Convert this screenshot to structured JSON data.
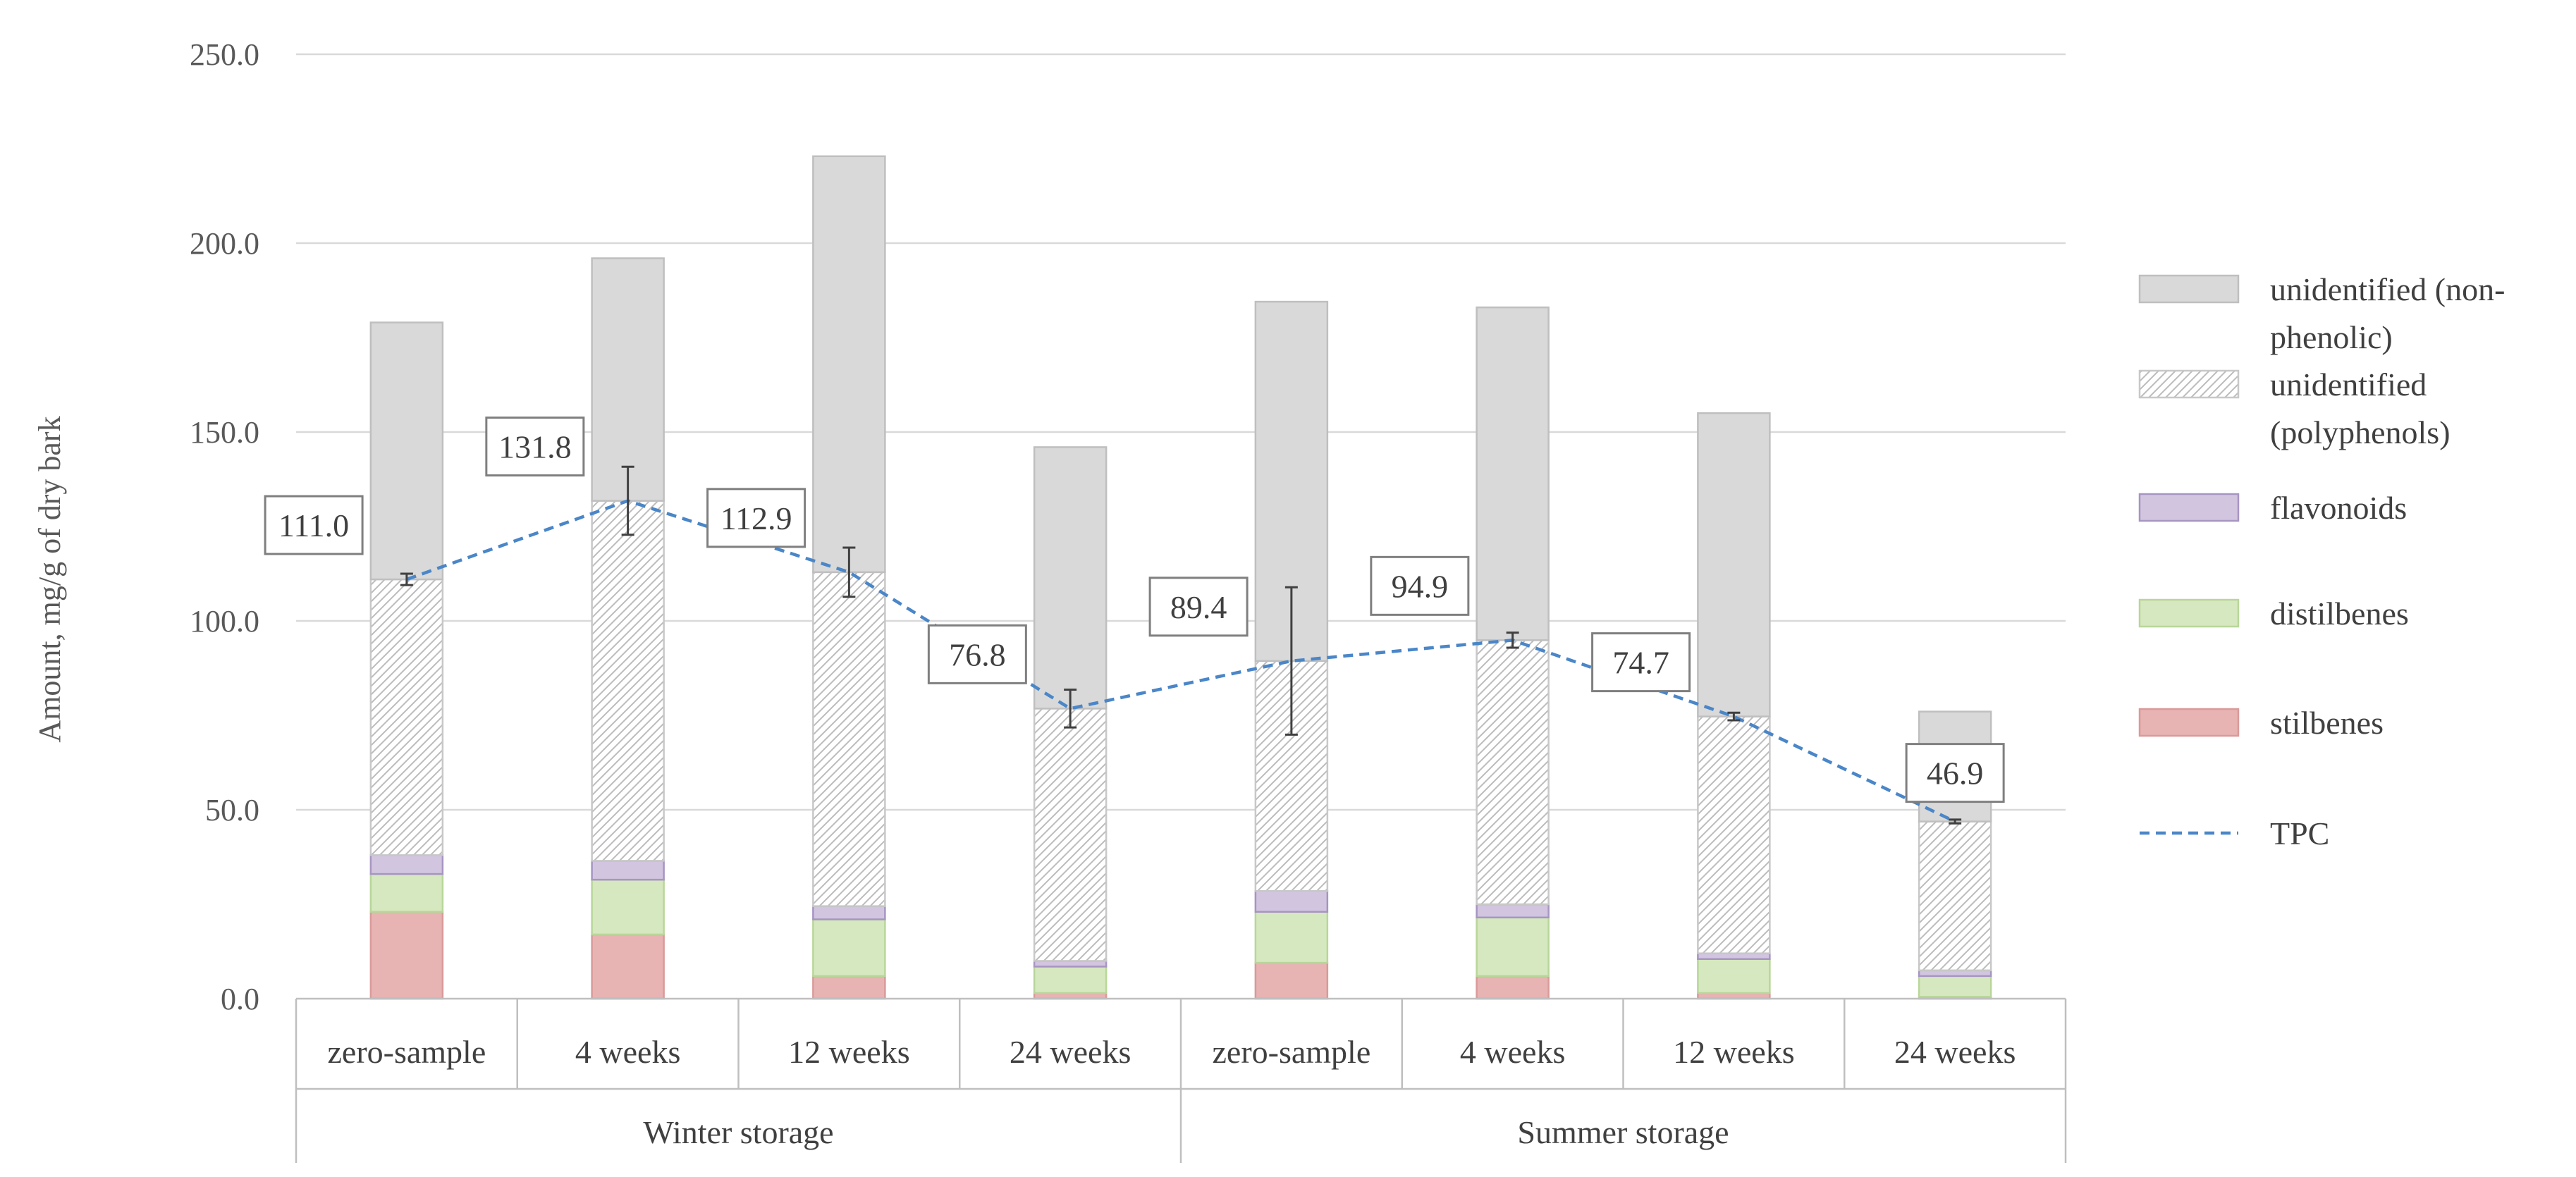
{
  "chart_data": {
    "type": "bar",
    "stacked": true,
    "ylabel": "Amount, mg/g of dry bark",
    "xlabel": "",
    "ylim": [
      0,
      250
    ],
    "yticks": [
      0,
      50,
      100,
      150,
      200,
      250
    ],
    "ytick_labels": [
      "0.0",
      "50.0",
      "100.0",
      "150.0",
      "200.0",
      "250.0"
    ],
    "grid": true,
    "legend_position": "right",
    "categories": [
      "zero-sample",
      "4 weeks",
      "12 weeks",
      "24 weeks",
      "zero-sample",
      "4 weeks",
      "12 weeks",
      "24 weeks"
    ],
    "groups": [
      {
        "label": "Winter storage",
        "span": [
          0,
          3
        ]
      },
      {
        "label": "Summer storage",
        "span": [
          4,
          7
        ]
      }
    ],
    "series": [
      {
        "name": "stilbenes",
        "color": "#e8b3b3",
        "border": "#d99a9a",
        "pattern": "solid",
        "values": [
          23,
          17,
          6,
          1.5,
          9.5,
          6,
          1.5,
          0.5
        ]
      },
      {
        "name": "distilbenes",
        "color": "#d6e8bf",
        "border": "#b9d69a",
        "pattern": "solid",
        "values": [
          10,
          14.5,
          15,
          7,
          13.5,
          15.5,
          9,
          5.5
        ]
      },
      {
        "name": "flavonoids",
        "color": "#d2c5e0",
        "border": "#a795c2",
        "pattern": "solid",
        "values": [
          5,
          5,
          3.5,
          1.5,
          5.5,
          3.5,
          1.5,
          1.5
        ]
      },
      {
        "name": "unidentified (polyphenols)",
        "color": "#ffffff",
        "border": "#c8c8c8",
        "pattern": "hatch",
        "values": [
          73,
          95.3,
          88.4,
          66.8,
          60.9,
          69.9,
          62.7,
          39.4
        ]
      },
      {
        "name": "unidentified (non-phenolic)",
        "color": "#d9d9d9",
        "border": "#bfbfbf",
        "pattern": "solid",
        "values": [
          68,
          64.2,
          110.1,
          69.2,
          95.1,
          88.1,
          80.3,
          29.1
        ]
      }
    ],
    "line_series": {
      "name": "TPC",
      "color": "#4a86c8",
      "style": "dashed",
      "values": [
        111.0,
        131.8,
        112.9,
        76.8,
        89.4,
        94.9,
        74.7,
        46.9
      ],
      "value_labels": [
        "111.0",
        "131.8",
        "112.9",
        "76.8",
        "89.4",
        "94.9",
        "74.7",
        "46.9"
      ],
      "errors": [
        1.5,
        9,
        6.5,
        5,
        19.5,
        2,
        1,
        0.5
      ]
    },
    "legend_order": [
      "unidentified (non-phenolic)",
      "unidentified (polyphenols)",
      "flavonoids",
      "distilbenes",
      "stilbenes",
      "TPC"
    ],
    "legend_labels": [
      [
        "unidentified (non-",
        "phenolic)"
      ],
      [
        "unidentified",
        "(polyphenols)"
      ],
      [
        "flavonoids"
      ],
      [
        "distilbenes"
      ],
      [
        "stilbenes"
      ],
      [
        "TPC"
      ]
    ]
  }
}
